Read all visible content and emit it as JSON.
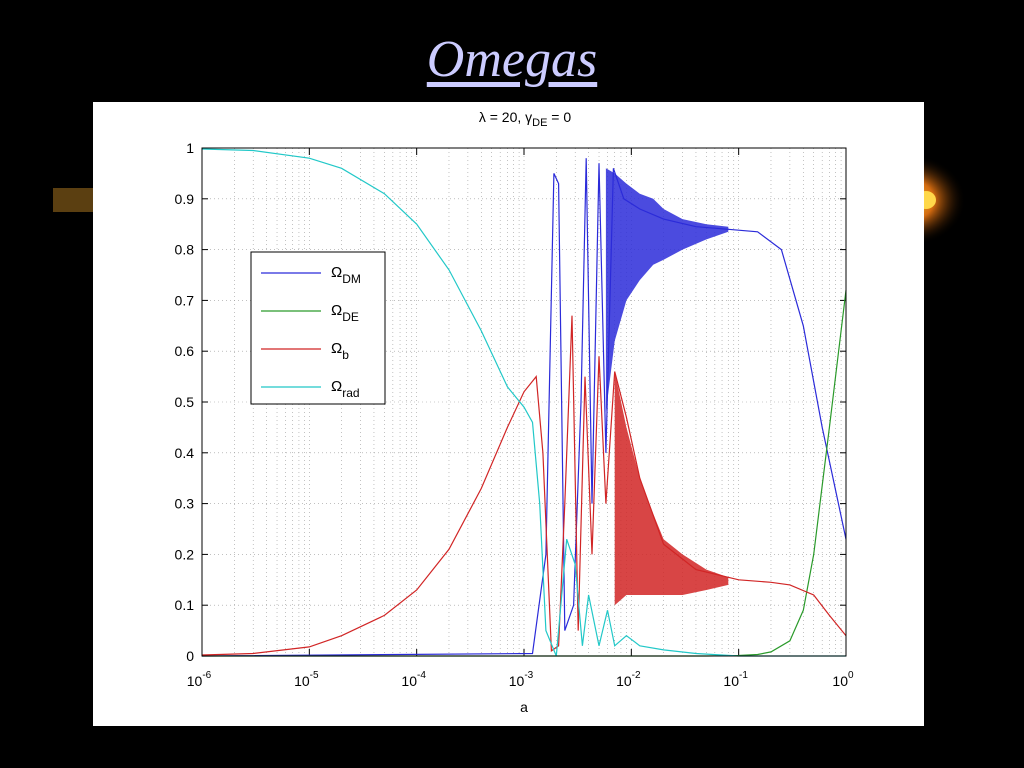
{
  "slide": {
    "title": "Omegas"
  },
  "chart_data": {
    "type": "line",
    "title": "λ = 20, γDE = 0",
    "title_parts": {
      "lambda": "λ = 20, γ",
      "gamma_sub": "DE",
      "rest": " = 0"
    },
    "xlabel": "a",
    "ylabel": "",
    "xscale": "log",
    "xlim": [
      1e-06,
      1
    ],
    "ylim": [
      0,
      1
    ],
    "grid": true,
    "legend_position": "upper-left",
    "x_ticks": [
      {
        "base": "10",
        "exp": "-6",
        "value": 1e-06
      },
      {
        "base": "10",
        "exp": "-5",
        "value": 1e-05
      },
      {
        "base": "10",
        "exp": "-4",
        "value": 0.0001
      },
      {
        "base": "10",
        "exp": "-3",
        "value": 0.001
      },
      {
        "base": "10",
        "exp": "-2",
        "value": 0.01
      },
      {
        "base": "10",
        "exp": "-1",
        "value": 0.1
      },
      {
        "base": "10",
        "exp": "0",
        "value": 1
      }
    ],
    "y_ticks": [
      "0",
      "0.1",
      "0.2",
      "0.3",
      "0.4",
      "0.5",
      "0.6",
      "0.7",
      "0.8",
      "0.9",
      "1"
    ],
    "series": [
      {
        "name": "ΩDM",
        "symbol": "Ω",
        "sub": "DM",
        "color": "#2b2bd9",
        "x": [
          1e-06,
          0.0012,
          0.0016,
          0.0019,
          0.0021,
          0.0024,
          0.0029,
          0.0034,
          0.0038,
          0.0043,
          0.005,
          0.0058,
          0.0068,
          0.0085,
          0.012,
          0.02,
          0.04,
          0.08,
          0.15,
          0.25,
          0.4,
          0.6,
          1
        ],
        "y": [
          0,
          0.005,
          0.2,
          0.95,
          0.93,
          0.05,
          0.1,
          0.5,
          0.98,
          0.3,
          0.97,
          0.4,
          0.96,
          0.9,
          0.88,
          0.86,
          0.845,
          0.84,
          0.835,
          0.8,
          0.65,
          0.45,
          0.23
        ],
        "envelope": {
          "x": [
            0.0058,
            0.007,
            0.009,
            0.012,
            0.016,
            0.02,
            0.03,
            0.05,
            0.08
          ],
          "upper": [
            0.96,
            0.95,
            0.93,
            0.91,
            0.9,
            0.88,
            0.86,
            0.85,
            0.845
          ],
          "lower": [
            0.48,
            0.62,
            0.7,
            0.74,
            0.77,
            0.78,
            0.8,
            0.82,
            0.835
          ]
        }
      },
      {
        "name": "ΩDE",
        "symbol": "Ω",
        "sub": "DE",
        "color": "#2a9a2a",
        "x": [
          1e-06,
          0.01,
          0.05,
          0.1,
          0.15,
          0.2,
          0.3,
          0.4,
          0.5,
          0.7,
          1
        ],
        "y": [
          0,
          0,
          0,
          0.001,
          0.003,
          0.008,
          0.03,
          0.09,
          0.2,
          0.45,
          0.72
        ]
      },
      {
        "name": "Ωb",
        "symbol": "Ω",
        "sub": "b",
        "color": "#d12525",
        "x": [
          1e-06,
          3e-06,
          1e-05,
          2e-05,
          5e-05,
          0.0001,
          0.0002,
          0.0004,
          0.0007,
          0.001,
          0.0013,
          0.0015,
          0.0018,
          0.0021,
          0.0024,
          0.0028,
          0.0032,
          0.0037,
          0.0043,
          0.005,
          0.0058,
          0.007,
          0.009,
          0.012,
          0.02,
          0.04,
          0.1,
          0.2,
          0.3,
          0.5,
          0.7,
          1
        ],
        "y": [
          0.002,
          0.005,
          0.018,
          0.04,
          0.08,
          0.13,
          0.21,
          0.33,
          0.45,
          0.52,
          0.55,
          0.4,
          0.01,
          0.02,
          0.3,
          0.67,
          0.05,
          0.55,
          0.2,
          0.59,
          0.3,
          0.56,
          0.47,
          0.35,
          0.22,
          0.17,
          0.15,
          0.145,
          0.14,
          0.12,
          0.08,
          0.04
        ],
        "envelope": {
          "x": [
            0.007,
            0.009,
            0.012,
            0.016,
            0.02,
            0.03,
            0.05,
            0.08
          ],
          "upper": [
            0.56,
            0.45,
            0.35,
            0.28,
            0.23,
            0.2,
            0.17,
            0.155
          ],
          "lower": [
            0.1,
            0.12,
            0.12,
            0.12,
            0.12,
            0.12,
            0.13,
            0.14
          ]
        }
      },
      {
        "name": "Ωrad",
        "symbol": "Ω",
        "sub": "rad",
        "color": "#22c8c8",
        "x": [
          1e-06,
          3e-06,
          1e-05,
          2e-05,
          5e-05,
          0.0001,
          0.0002,
          0.0004,
          0.0007,
          0.001,
          0.0012,
          0.0014,
          0.0016,
          0.002,
          0.0025,
          0.003,
          0.0035,
          0.004,
          0.005,
          0.006,
          0.007,
          0.009,
          0.012,
          0.02,
          0.04,
          0.1,
          1
        ],
        "y": [
          0.998,
          0.995,
          0.98,
          0.96,
          0.91,
          0.85,
          0.76,
          0.64,
          0.53,
          0.49,
          0.46,
          0.3,
          0.05,
          0.0,
          0.23,
          0.18,
          0.02,
          0.12,
          0.02,
          0.09,
          0.02,
          0.04,
          0.02,
          0.012,
          0.005,
          0.0,
          0.0
        ]
      }
    ]
  }
}
